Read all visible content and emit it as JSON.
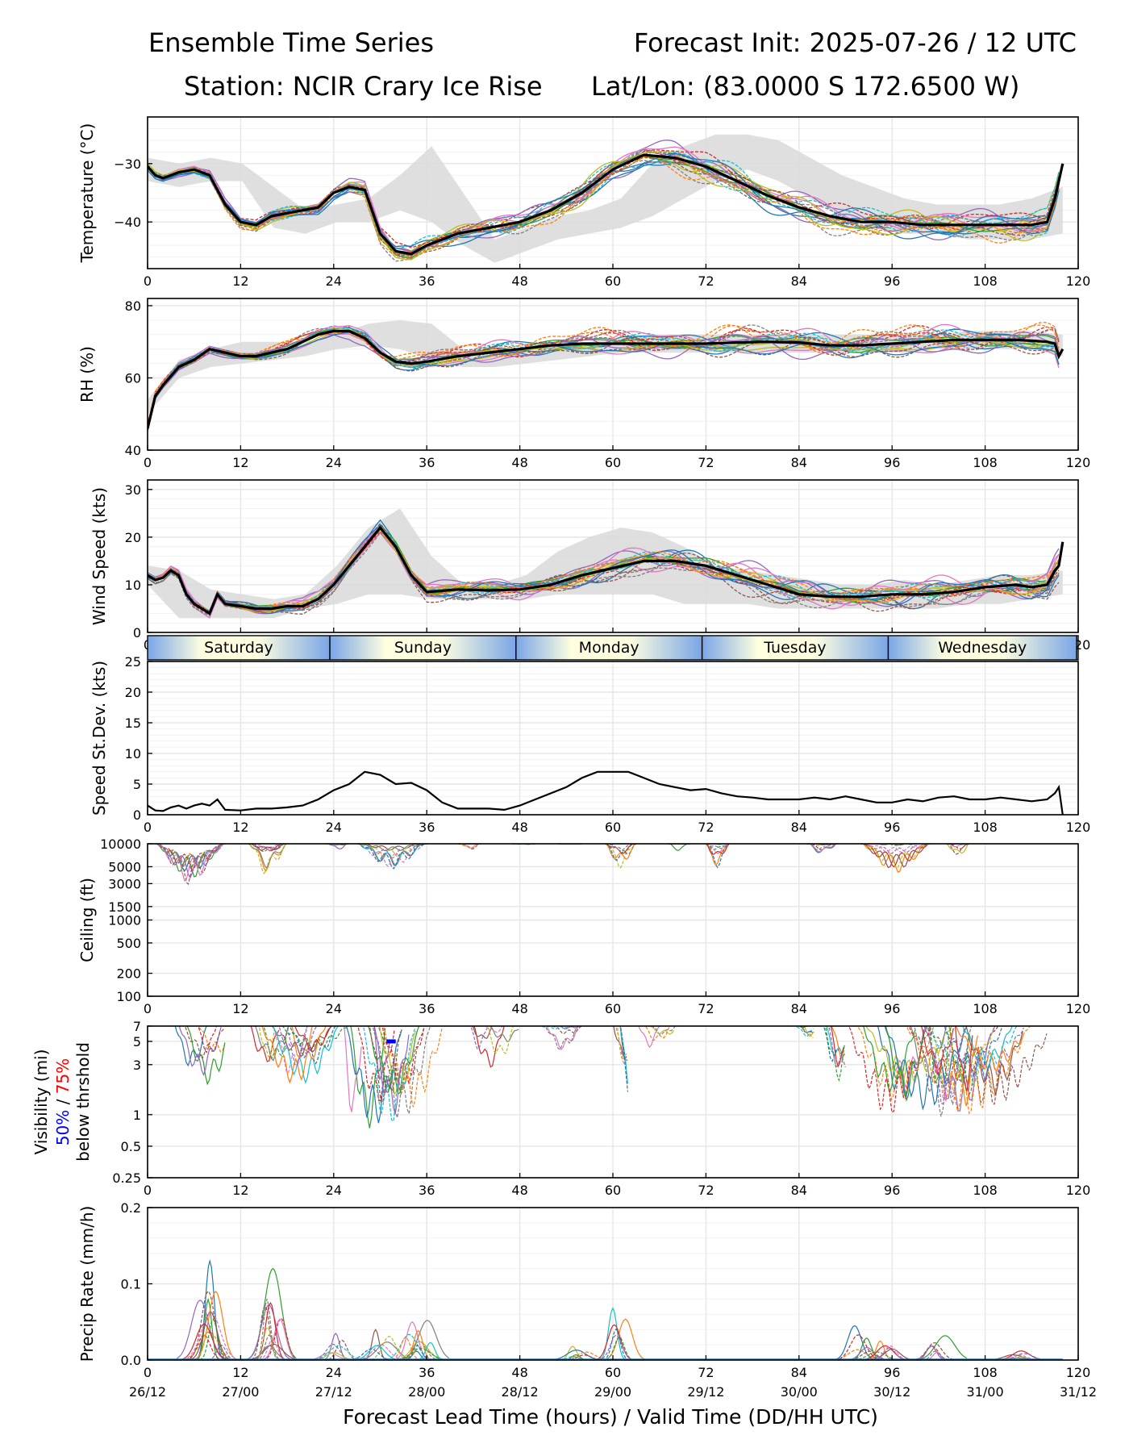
{
  "header": {
    "title_left": "Ensemble Time Series",
    "title_right": "Forecast Init: 2025-07-26 / 12 UTC",
    "station": "Station: NCIR Crary Ice Rise",
    "latlon": "Lat/Lon: (83.0000 S 172.6500 W)"
  },
  "colors": {
    "mean": "#000000",
    "spread": "#d9d9d9",
    "grid": "#e6e6e6",
    "members": [
      "#1f77b4",
      "#ff7f0e",
      "#2ca02c",
      "#d62728",
      "#9467bd",
      "#8c564b",
      "#e377c2",
      "#7f7f7f",
      "#bcbd22",
      "#17becf"
    ],
    "vis_p50": "#0000ff",
    "vis_p75": "#ff0000"
  },
  "day_band": [
    "Saturday",
    "Sunday",
    "Monday",
    "Tuesday",
    "Wednesday"
  ],
  "chart_data": [
    {
      "id": "temperature",
      "type": "line",
      "ylabel": "Temperature (°C)",
      "xlim": [
        0,
        120
      ],
      "ylim": [
        -48,
        -22
      ],
      "yticks": [
        -30,
        -40
      ],
      "ytick_labels": [
        "−30",
        "−40"
      ],
      "xticks": [
        0,
        12,
        24,
        36,
        48,
        60,
        72,
        84,
        96,
        108,
        120
      ],
      "mean": {
        "x": [
          0,
          1,
          2,
          4,
          6,
          8,
          10,
          12,
          14,
          16,
          18,
          20,
          22,
          24,
          26,
          28,
          30,
          32,
          34,
          36,
          40,
          44,
          48,
          52,
          56,
          60,
          64,
          68,
          72,
          76,
          80,
          84,
          88,
          92,
          96,
          100,
          104,
          108,
          112,
          114,
          116,
          117,
          117.5,
          118
        ],
        "y": [
          -30.5,
          -32,
          -32.5,
          -31.5,
          -31,
          -32,
          -37,
          -40,
          -40.5,
          -39,
          -38.5,
          -38,
          -37.5,
          -35,
          -34,
          -34.5,
          -42,
          -45,
          -45.5,
          -44,
          -42,
          -41,
          -40,
          -38,
          -35,
          -31,
          -28.5,
          -29,
          -30.5,
          -33,
          -35.5,
          -37.5,
          -39,
          -40,
          -40,
          -40.5,
          -40.5,
          -40.5,
          -40.5,
          -40.5,
          -40,
          -36,
          -33,
          -30
        ]
      },
      "spread_lo": [
        -33,
        -34,
        -33,
        -33,
        -41,
        -42,
        -40,
        -40,
        -38,
        -40,
        -44,
        -47,
        -45,
        -43,
        -42,
        -41,
        -39,
        -36,
        -33,
        -31,
        -33,
        -36,
        -39,
        -41,
        -42,
        -42,
        -43,
        -43,
        -43,
        -42
      ],
      "spread_hi": [
        -29,
        -30,
        -29,
        -30,
        -34,
        -38,
        -37,
        -36,
        -32,
        -27,
        -35,
        -43,
        -41,
        -39,
        -38,
        -36,
        -30,
        -27,
        -25,
        -25,
        -26,
        -29,
        -32,
        -34,
        -36,
        -37,
        -37,
        -37,
        -36,
        -34
      ]
    },
    {
      "id": "rh",
      "type": "line",
      "ylabel": "RH (%)",
      "xlim": [
        0,
        120
      ],
      "ylim": [
        40,
        82
      ],
      "yticks": [
        40,
        60,
        80
      ],
      "ytick_labels": [
        "40",
        "60",
        "80"
      ],
      "xticks": [
        0,
        12,
        24,
        36,
        48,
        60,
        72,
        84,
        96,
        108,
        120
      ],
      "mean": {
        "x": [
          0,
          1,
          2,
          4,
          6,
          8,
          10,
          12,
          14,
          16,
          18,
          20,
          22,
          24,
          26,
          28,
          30,
          32,
          34,
          36,
          40,
          44,
          48,
          52,
          56,
          60,
          64,
          68,
          72,
          76,
          80,
          84,
          88,
          92,
          96,
          100,
          104,
          108,
          112,
          114,
          116,
          117,
          117.5,
          118
        ],
        "y": [
          46,
          55,
          58,
          63,
          65,
          68,
          67,
          66,
          66,
          67,
          68,
          70,
          72,
          73,
          73,
          71,
          67,
          64.5,
          64,
          64.5,
          66,
          67,
          68,
          69,
          69.5,
          69.5,
          69.5,
          69.5,
          69.5,
          69.8,
          70,
          69.8,
          69,
          69,
          69.5,
          70,
          70.5,
          70.5,
          70.5,
          70.3,
          70,
          69.5,
          66,
          68
        ]
      },
      "spread_lo": [
        50,
        60,
        63,
        64,
        65,
        66,
        68,
        69,
        68,
        65,
        63,
        63,
        64,
        65,
        66,
        67,
        67,
        67,
        67,
        67,
        67,
        67,
        67,
        67,
        67,
        68,
        68,
        68,
        68,
        66
      ],
      "spread_hi": [
        54,
        65,
        68,
        70,
        70,
        70,
        72,
        75,
        76,
        75,
        68,
        66,
        68,
        69,
        70,
        71,
        72,
        72,
        72,
        72,
        72,
        72,
        72,
        72,
        72,
        72,
        73,
        73,
        73,
        72
      ]
    },
    {
      "id": "wind",
      "type": "line",
      "ylabel": "Wind Speed (kts)",
      "xlim": [
        0,
        120
      ],
      "ylim": [
        0,
        32
      ],
      "yticks": [
        0,
        10,
        20,
        30
      ],
      "ytick_labels": [
        "0",
        "10",
        "20",
        "30"
      ],
      "xticks": [
        0,
        12,
        24,
        36,
        48,
        60,
        72,
        84,
        96,
        108,
        120
      ],
      "mean": {
        "x": [
          0,
          1,
          2,
          3,
          4,
          5,
          6,
          7,
          8,
          9,
          10,
          12,
          14,
          16,
          18,
          20,
          22,
          24,
          26,
          28,
          30,
          32,
          34,
          36,
          40,
          44,
          48,
          52,
          56,
          60,
          64,
          68,
          72,
          76,
          80,
          84,
          88,
          92,
          96,
          100,
          104,
          108,
          112,
          114,
          116,
          117,
          117.5,
          118
        ],
        "y": [
          12,
          11,
          11.5,
          13,
          12,
          8,
          6,
          5,
          4,
          8,
          6,
          5.5,
          5,
          5,
          5.5,
          5.5,
          7,
          10,
          14,
          18,
          22,
          18,
          12,
          8.5,
          9,
          8.8,
          9,
          10,
          12,
          13.5,
          15,
          15,
          14,
          12,
          10,
          8,
          7.5,
          7.5,
          8,
          8,
          8.5,
          9.5,
          10,
          9.5,
          10,
          13,
          14,
          19
        ]
      },
      "spread_lo": [
        10,
        3,
        3,
        3,
        3,
        5,
        6,
        8,
        8,
        7,
        7,
        7,
        7,
        8,
        8,
        8,
        8,
        6,
        6,
        6,
        5,
        5,
        5,
        5,
        5,
        5,
        6,
        6,
        7,
        8
      ],
      "spread_hi": [
        14,
        13,
        9,
        8,
        7,
        8,
        14,
        22,
        26,
        16,
        10,
        10,
        12,
        17,
        20,
        22,
        21,
        18,
        14,
        13,
        12,
        11,
        10,
        10,
        11,
        10,
        11,
        12,
        12,
        13
      ]
    },
    {
      "id": "speed_stdev",
      "type": "line",
      "ylabel": "Speed St.Dev. (kts)",
      "xlim": [
        0,
        120
      ],
      "ylim": [
        0,
        25
      ],
      "yticks": [
        0,
        5,
        10,
        15,
        20,
        25
      ],
      "ytick_labels": [
        "0",
        "5",
        "10",
        "15",
        "20",
        "25"
      ],
      "xticks": [
        0,
        12,
        24,
        36,
        48,
        60,
        72,
        84,
        96,
        108,
        120
      ],
      "mean": {
        "x": [
          0,
          1,
          2,
          3,
          4,
          5,
          6,
          7,
          8,
          9,
          10,
          12,
          14,
          16,
          18,
          20,
          22,
          24,
          26,
          28,
          30,
          32,
          34,
          36,
          38,
          40,
          42,
          44,
          46,
          48,
          50,
          52,
          54,
          56,
          58,
          60,
          62,
          64,
          66,
          68,
          70,
          72,
          74,
          76,
          78,
          80,
          82,
          84,
          86,
          88,
          90,
          92,
          94,
          96,
          98,
          100,
          102,
          104,
          106,
          108,
          110,
          112,
          114,
          116,
          117,
          117.5,
          118
        ],
        "y": [
          1.5,
          0.7,
          0.6,
          1.2,
          1.5,
          1,
          1.5,
          1.8,
          1.5,
          2.5,
          0.8,
          0.7,
          1,
          1,
          1.2,
          1.5,
          2.5,
          4,
          5,
          7,
          6.5,
          5,
          5.2,
          4,
          2,
          1,
          1,
          1,
          0.8,
          1.5,
          2.5,
          3.5,
          4.5,
          6,
          7,
          7,
          7,
          6,
          5,
          4.5,
          4,
          4.2,
          3.5,
          3,
          2.8,
          2.5,
          2.5,
          2.5,
          2.8,
          2.5,
          3,
          2.5,
          2,
          2,
          2.5,
          2.2,
          2.8,
          3,
          2.5,
          2.5,
          2.8,
          2.5,
          2.2,
          2.5,
          3.5,
          4.5,
          0
        ]
      }
    },
    {
      "id": "ceiling",
      "type": "line",
      "ylabel": "Ceiling (ft)",
      "xlim": [
        0,
        120
      ],
      "ylim": [
        100,
        10000
      ],
      "log": true,
      "yticks": [
        100,
        200,
        500,
        1000,
        1500,
        3000,
        5000,
        10000
      ],
      "ytick_labels": [
        "100",
        "200",
        "500",
        "1000",
        "1500",
        "3000",
        "5000",
        "10000"
      ],
      "xticks": [
        0,
        12,
        24,
        36,
        48,
        60,
        72,
        84,
        96,
        108,
        120
      ]
    },
    {
      "id": "visibility",
      "type": "line",
      "ylabel": "Visibility (mi)",
      "ylabel_p50": "50%",
      "ylabel_sep": " / ",
      "ylabel_p75": "75%",
      "ylabel_sub": "below thrshold",
      "xlim": [
        0,
        120
      ],
      "ylim": [
        0.25,
        7
      ],
      "log": true,
      "yticks": [
        0.25,
        0.5,
        1,
        3,
        5,
        7
      ],
      "ytick_labels": [
        "0.25",
        "0.5",
        "1",
        "3",
        "5",
        "7"
      ],
      "xticks": [
        0,
        12,
        24,
        36,
        48,
        60,
        72,
        84,
        96,
        108,
        120
      ],
      "p50_segment": {
        "x": [
          30.8,
          32
        ],
        "y": [
          5,
          5
        ]
      }
    },
    {
      "id": "precip",
      "type": "line",
      "ylabel": "Precip Rate (mm/h)",
      "xlabel": "Forecast Lead Time (hours) / Valid Time (DD/HH UTC)",
      "xlim": [
        0,
        120
      ],
      "ylim": [
        0,
        0.2
      ],
      "yticks": [
        0,
        0.1,
        0.2
      ],
      "ytick_labels": [
        "0.0",
        "0.1",
        "0.2"
      ],
      "xticks": [
        0,
        12,
        24,
        36,
        48,
        60,
        72,
        84,
        96,
        108,
        120
      ],
      "xtick_labels_valid": [
        "26/12",
        "27/00",
        "27/12",
        "28/00",
        "28/12",
        "29/00",
        "29/12",
        "30/00",
        "30/12",
        "31/00",
        "31/12"
      ]
    }
  ]
}
